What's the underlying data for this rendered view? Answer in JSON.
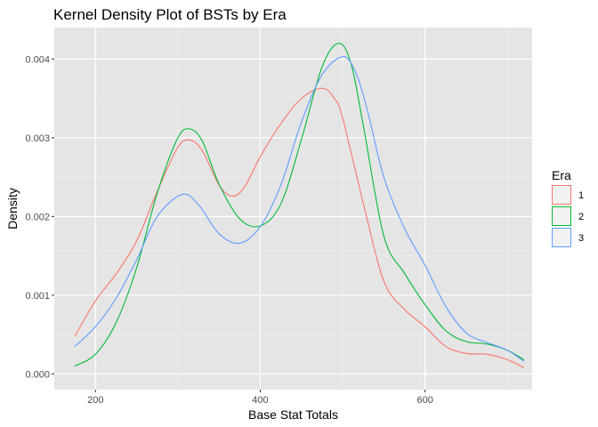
{
  "chart_data": {
    "type": "line",
    "subtype": "kernel-density",
    "title": "Kernel Density Plot of BSTs by Era",
    "xlabel": "Base Stat Totals",
    "ylabel": "Density",
    "xlim": [
      150,
      730
    ],
    "ylim": [
      -0.0002,
      0.0044
    ],
    "x_ticks": [
      200,
      400,
      600
    ],
    "x_tick_labels": [
      "200",
      "400",
      "600"
    ],
    "y_ticks": [
      0.0,
      0.001,
      0.002,
      0.003,
      0.004
    ],
    "y_tick_labels": [
      "0.000",
      "0.001",
      "0.002",
      "0.003",
      "0.004"
    ],
    "grid": true,
    "background": "#e5e5e5",
    "legend": {
      "title": "Era",
      "position": "right"
    },
    "series": [
      {
        "name": "1",
        "color": "#f8766d",
        "x": [
          175,
          200,
          225,
          250,
          275,
          300,
          315,
          330,
          350,
          365,
          380,
          400,
          425,
          450,
          475,
          490,
          500,
          525,
          550,
          575,
          600,
          625,
          650,
          675,
          700,
          720
        ],
        "y": [
          0.00048,
          0.00093,
          0.00127,
          0.00169,
          0.00232,
          0.00288,
          0.00297,
          0.00283,
          0.0024,
          0.00226,
          0.00236,
          0.00276,
          0.00318,
          0.0035,
          0.00363,
          0.0035,
          0.00325,
          0.00217,
          0.00118,
          0.00082,
          0.0006,
          0.00035,
          0.00026,
          0.00025,
          0.00018,
          8e-05
        ]
      },
      {
        "name": "2",
        "color": "#00ba38",
        "x": [
          175,
          200,
          225,
          250,
          275,
          300,
          315,
          330,
          350,
          375,
          400,
          425,
          450,
          475,
          495,
          510,
          525,
          550,
          575,
          600,
          625,
          650,
          675,
          700,
          720
        ],
        "y": [
          0.0001,
          0.00025,
          0.00065,
          0.00135,
          0.0023,
          0.003,
          0.00311,
          0.00295,
          0.00241,
          0.00197,
          0.00188,
          0.00216,
          0.00298,
          0.0039,
          0.0042,
          0.00395,
          0.00316,
          0.00175,
          0.00128,
          0.00088,
          0.00055,
          0.00041,
          0.00038,
          0.0003,
          0.00018
        ]
      },
      {
        "name": "3",
        "color": "#619cff",
        "x": [
          175,
          200,
          225,
          250,
          275,
          305,
          325,
          350,
          375,
          400,
          425,
          450,
          475,
          500,
          515,
          530,
          550,
          575,
          600,
          625,
          650,
          675,
          700,
          720
        ],
        "y": [
          0.00035,
          0.0006,
          0.00096,
          0.00145,
          0.002,
          0.00228,
          0.00215,
          0.00178,
          0.00166,
          0.00187,
          0.0024,
          0.0032,
          0.0038,
          0.00403,
          0.00385,
          0.00335,
          0.0025,
          0.00185,
          0.00138,
          0.00086,
          0.00052,
          0.0004,
          0.0003,
          0.00016
        ]
      }
    ]
  }
}
